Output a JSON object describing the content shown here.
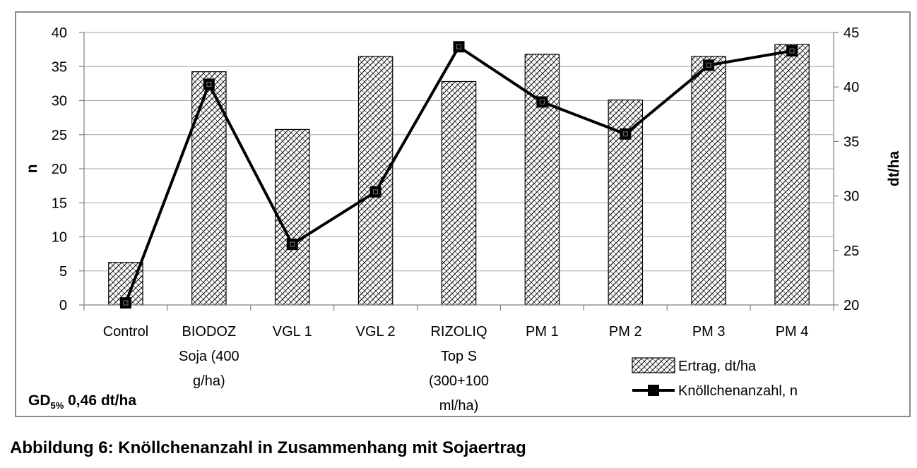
{
  "chart_data": {
    "type": "bar",
    "categories": [
      [
        "Control"
      ],
      [
        "BIODOZ",
        "Soja (400",
        "g/ha)"
      ],
      [
        "VGL 1"
      ],
      [
        "VGL 2"
      ],
      [
        "RIZOLIQ",
        "Top S",
        "(300+100",
        "ml/ha)"
      ],
      [
        "PM 1"
      ],
      [
        "PM 2"
      ],
      [
        "PM 3"
      ],
      [
        "PM 4"
      ]
    ],
    "series": [
      {
        "name": "Ertrag, dt/ha",
        "kind": "bar",
        "axis": "right",
        "values": [
          23.9,
          41.4,
          36.1,
          42.8,
          40.5,
          43.0,
          38.8,
          42.8,
          43.9
        ]
      },
      {
        "name": "Knöllchenanzahl, n",
        "kind": "line",
        "axis": "left",
        "values": [
          0.3,
          32.4,
          8.9,
          16.6,
          37.9,
          29.8,
          25.1,
          35.2,
          37.3
        ]
      }
    ],
    "ylabel_left": "n",
    "ylabel_right": "dt/ha",
    "ylim_left": [
      0,
      40
    ],
    "yticks_left": [
      "0",
      "5",
      "10",
      "15",
      "20",
      "25",
      "30",
      "35",
      "40"
    ],
    "ylim_right": [
      20,
      45
    ],
    "yticks_right": [
      "20",
      "25",
      "30",
      "35",
      "40",
      "45"
    ],
    "legend_position": "bottom-right"
  },
  "note": {
    "prefix": "GD",
    "sub": "5%",
    "value": " 0,46 dt/ha"
  },
  "caption": "Abbildung 6: Knöllchenanzahl in Zusammenhang mit Sojaertrag"
}
